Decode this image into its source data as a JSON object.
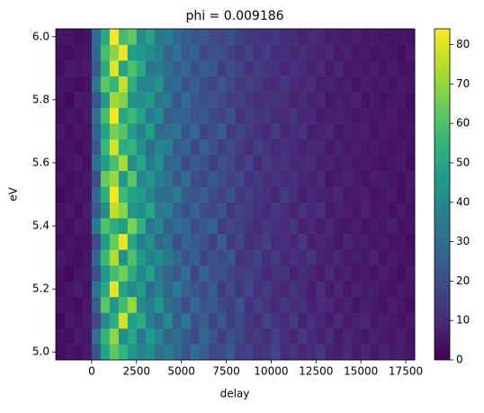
{
  "chart_data": {
    "type": "heatmap",
    "title": "phi = 0.009186",
    "x_label": "delay",
    "y_label": "eV",
    "x_bins": [
      -2000,
      -1500,
      -1000,
      -500,
      0,
      500,
      1000,
      1500,
      2000,
      2500,
      3000,
      3500,
      4000,
      4500,
      5000,
      5500,
      6000,
      6500,
      7000,
      7500,
      8000,
      8500,
      9000,
      9500,
      10000,
      10500,
      11000,
      11500,
      12000,
      12500,
      13000,
      13500,
      14000,
      14500,
      15000,
      15500,
      16000,
      16500,
      17000,
      17500,
      18000
    ],
    "y_bins": [
      4.975,
      5.025,
      5.075,
      5.125,
      5.175,
      5.225,
      5.275,
      5.325,
      5.375,
      5.425,
      5.475,
      5.525,
      5.575,
      5.625,
      5.675,
      5.725,
      5.775,
      5.825,
      5.875,
      5.925,
      5.975,
      6.025
    ],
    "xlim": [
      -2000,
      18000
    ],
    "ylim": [
      4.975,
      6.025
    ],
    "xticks": [
      0,
      2500,
      5000,
      7500,
      10000,
      12500,
      15000,
      17500
    ],
    "yticks": [
      {
        "value": 5,
        "label": "5.0"
      },
      5.2,
      5.4,
      5.6,
      5.8,
      {
        "value": 6,
        "label": "6.0"
      }
    ],
    "clim": [
      0,
      84
    ],
    "cticks": [
      0,
      10,
      20,
      30,
      40,
      50,
      60,
      70,
      80
    ],
    "colormap": [
      "#440154",
      "#482878",
      "#3e4989",
      "#31688e",
      "#26828e",
      "#1f9e89",
      "#35b779",
      "#6ece58",
      "#b5de2b",
      "#fde725"
    ],
    "z": [
      [
        3,
        5,
        4,
        6,
        22,
        48,
        62,
        55,
        44,
        38,
        41,
        30,
        35,
        28,
        22,
        30,
        25,
        18,
        20,
        24,
        15,
        17,
        12,
        14,
        18,
        10,
        13,
        9,
        11,
        14,
        8,
        7,
        10,
        6,
        9,
        5,
        8,
        6,
        7,
        5
      ],
      [
        4,
        3,
        6,
        5,
        30,
        55,
        70,
        42,
        50,
        33,
        46,
        38,
        27,
        31,
        24,
        19,
        28,
        22,
        16,
        21,
        18,
        13,
        15,
        11,
        16,
        12,
        9,
        14,
        10,
        8,
        11,
        6,
        9,
        7,
        5,
        8,
        6,
        5,
        7,
        4
      ],
      [
        2,
        6,
        4,
        7,
        18,
        40,
        52,
        78,
        47,
        52,
        36,
        29,
        40,
        25,
        33,
        21,
        26,
        17,
        23,
        15,
        19,
        14,
        11,
        17,
        13,
        10,
        15,
        8,
        12,
        9,
        7,
        10,
        6,
        8,
        9,
        5,
        7,
        6,
        4,
        6
      ],
      [
        5,
        4,
        3,
        6,
        26,
        62,
        45,
        58,
        71,
        40,
        35,
        44,
        31,
        27,
        20,
        29,
        22,
        24,
        18,
        16,
        21,
        12,
        16,
        13,
        10,
        14,
        11,
        12,
        8,
        10,
        9,
        6,
        8,
        5,
        7,
        6,
        4,
        7,
        5,
        3
      ],
      [
        3,
        5,
        7,
        4,
        33,
        50,
        81,
        49,
        40,
        47,
        30,
        37,
        28,
        34,
        26,
        23,
        19,
        25,
        14,
        20,
        13,
        18,
        12,
        15,
        11,
        9,
        13,
        10,
        7,
        11,
        6,
        9,
        5,
        8,
        6,
        7,
        5,
        4,
        6,
        5
      ],
      [
        4,
        2,
        5,
        6,
        21,
        44,
        58,
        66,
        52,
        39,
        48,
        33,
        26,
        24,
        30,
        18,
        27,
        20,
        22,
        17,
        15,
        16,
        14,
        10,
        12,
        13,
        8,
        11,
        9,
        6,
        10,
        7,
        8,
        5,
        6,
        4,
        7,
        5,
        3,
        6
      ],
      [
        6,
        4,
        3,
        5,
        28,
        57,
        74,
        43,
        60,
        45,
        37,
        41,
        34,
        29,
        22,
        26,
        17,
        21,
        19,
        23,
        12,
        14,
        17,
        11,
        15,
        9,
        12,
        10,
        13,
        8,
        7,
        9,
        6,
        7,
        5,
        8,
        4,
        6,
        5,
        4
      ],
      [
        3,
        5,
        4,
        4,
        19,
        46,
        64,
        82,
        50,
        36,
        42,
        28,
        32,
        20,
        27,
        24,
        21,
        16,
        25,
        14,
        18,
        11,
        13,
        16,
        10,
        12,
        9,
        14,
        7,
        9,
        8,
        5,
        9,
        6,
        7,
        5,
        6,
        4,
        5,
        3
      ],
      [
        5,
        3,
        6,
        5,
        35,
        60,
        52,
        47,
        67,
        54,
        33,
        39,
        25,
        31,
        28,
        19,
        23,
        26,
        15,
        18,
        16,
        13,
        11,
        14,
        12,
        10,
        13,
        8,
        10,
        7,
        9,
        6,
        5,
        7,
        4,
        6,
        5,
        7,
        4,
        5
      ],
      [
        4,
        6,
        3,
        7,
        24,
        41,
        76,
        69,
        44,
        41,
        50,
        34,
        37,
        26,
        21,
        27,
        20,
        18,
        22,
        13,
        17,
        15,
        12,
        10,
        14,
        11,
        8,
        12,
        9,
        11,
        6,
        8,
        7,
        5,
        8,
        5,
        6,
        4,
        6,
        4
      ],
      [
        2,
        4,
        5,
        4,
        29,
        53,
        84,
        57,
        48,
        46,
        39,
        31,
        29,
        35,
        24,
        22,
        25,
        19,
        17,
        21,
        14,
        16,
        13,
        12,
        9,
        15,
        11,
        7,
        10,
        8,
        7,
        9,
        5,
        6,
        7,
        4,
        5,
        6,
        3,
        5
      ],
      [
        5,
        3,
        4,
        6,
        20,
        64,
        71,
        45,
        62,
        38,
        44,
        36,
        33,
        23,
        30,
        20,
        18,
        24,
        20,
        16,
        19,
        12,
        14,
        11,
        13,
        10,
        12,
        9,
        8,
        10,
        5,
        7,
        8,
        6,
        4,
        7,
        6,
        5,
        4,
        6
      ],
      [
        3,
        5,
        6,
        3,
        32,
        47,
        59,
        73,
        41,
        50,
        35,
        42,
        27,
        28,
        19,
        25,
        22,
        15,
        21,
        18,
        13,
        17,
        10,
        15,
        11,
        13,
        9,
        10,
        11,
        7,
        8,
        6,
        7,
        5,
        6,
        5,
        4,
        5,
        6,
        3
      ],
      [
        4,
        4,
        3,
        5,
        23,
        56,
        79,
        52,
        55,
        43,
        31,
        38,
        36,
        24,
        27,
        18,
        26,
        21,
        16,
        19,
        15,
        11,
        16,
        13,
        10,
        12,
        10,
        8,
        9,
        9,
        6,
        8,
        5,
        7,
        5,
        6,
        5,
        4,
        5,
        4
      ],
      [
        6,
        3,
        5,
        4,
        27,
        49,
        66,
        61,
        46,
        37,
        47,
        29,
        30,
        33,
        22,
        28,
        17,
        20,
        24,
        14,
        17,
        14,
        12,
        10,
        15,
        9,
        11,
        12,
        7,
        8,
        9,
        5,
        7,
        6,
        7,
        4,
        6,
        5,
        4,
        5
      ],
      [
        3,
        5,
        4,
        6,
        31,
        58,
        83,
        50,
        57,
        48,
        36,
        40,
        25,
        27,
        26,
        21,
        24,
        18,
        17,
        22,
        12,
        15,
        13,
        14,
        11,
        10,
        13,
        9,
        10,
        6,
        7,
        8,
        6,
        5,
        6,
        5,
        5,
        6,
        4,
        4
      ],
      [
        4,
        2,
        6,
        5,
        22,
        45,
        72,
        68,
        43,
        42,
        45,
        32,
        34,
        22,
        29,
        23,
        20,
        22,
        19,
        15,
        16,
        13,
        11,
        12,
        13,
        11,
        8,
        11,
        8,
        9,
        5,
        7,
        6,
        8,
        4,
        6,
        4,
        5,
        5,
        3
      ],
      [
        5,
        4,
        3,
        4,
        34,
        62,
        55,
        77,
        53,
        39,
        38,
        43,
        28,
        30,
        21,
        26,
        19,
        17,
        23,
        18,
        14,
        16,
        14,
        11,
        10,
        14,
        10,
        9,
        11,
        7,
        8,
        6,
        7,
        4,
        7,
        5,
        6,
        4,
        6,
        5
      ],
      [
        3,
        6,
        5,
        6,
        25,
        52,
        80,
        48,
        60,
        51,
        33,
        35,
        31,
        25,
        28,
        20,
        25,
        23,
        15,
        20,
        17,
        12,
        15,
        13,
        12,
        9,
        12,
        10,
        8,
        10,
        6,
        9,
        5,
        6,
        5,
        7,
        4,
        6,
        4,
        4
      ],
      [
        4,
        3,
        4,
        5,
        28,
        59,
        69,
        82,
        47,
        45,
        41,
        37,
        26,
        32,
        23,
        27,
        18,
        21,
        20,
        16,
        13,
        17,
        12,
        15,
        10,
        12,
        9,
        11,
        9,
        8,
        9,
        6,
        8,
        5,
        6,
        4,
        5,
        5,
        3,
        6
      ],
      [
        5,
        5,
        3,
        4,
        30,
        50,
        84,
        58,
        63,
        40,
        48,
        33,
        35,
        28,
        25,
        22,
        23,
        19,
        18,
        21,
        16,
        14,
        13,
        12,
        14,
        10,
        11,
        8,
        10,
        9,
        7,
        7,
        6,
        7,
        5,
        6,
        5,
        4,
        5,
        4
      ]
    ]
  }
}
